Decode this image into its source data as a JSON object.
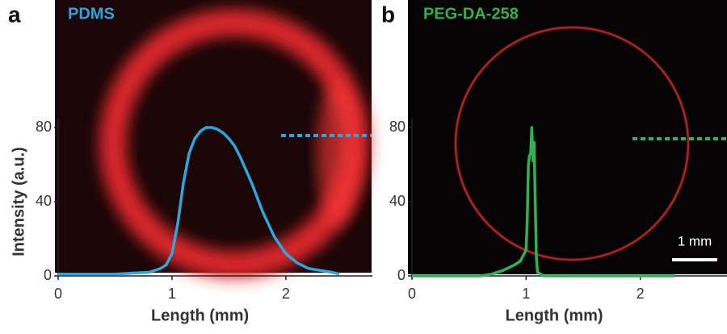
{
  "chart_data": [
    {
      "type": "line",
      "panel_label": "a",
      "x_label": "Length (mm)",
      "y_label": "Intensity (a.u.)",
      "x": [
        0,
        0.5,
        0.8,
        0.9,
        0.95,
        1.0,
        1.05,
        1.1,
        1.15,
        1.2,
        1.25,
        1.3,
        1.35,
        1.4,
        1.45,
        1.5,
        1.55,
        1.6,
        1.7,
        1.8,
        1.9,
        2.0,
        2.1,
        2.2,
        2.3,
        2.4,
        2.47
      ],
      "series": [
        {
          "name": "PDMS",
          "color": "#2ba6de",
          "values": [
            1,
            1,
            2,
            4,
            6,
            12,
            28,
            50,
            66,
            74,
            78,
            80,
            80,
            79,
            77,
            74,
            70,
            64,
            50,
            34,
            21,
            12,
            7,
            4,
            3,
            2,
            1
          ]
        }
      ],
      "xlim": [
        0,
        2.76
      ],
      "ylim": [
        0,
        85
      ],
      "xticks": [
        0,
        1,
        2
      ],
      "yticks": [
        0,
        40,
        80
      ]
    },
    {
      "type": "line",
      "panel_label": "b",
      "x_label": "Length (mm)",
      "scale_bar_label": "1 mm",
      "x": [
        0,
        0.6,
        0.7,
        0.8,
        0.9,
        0.95,
        1.0,
        1.01,
        1.02,
        1.03,
        1.04,
        1.05,
        1.06,
        1.07,
        1.08,
        1.09,
        1.1,
        1.15,
        1.2,
        2.3
      ],
      "series": [
        {
          "name": "PEG-DA-258",
          "color": "#2fb34c",
          "values": [
            0,
            0,
            1,
            3,
            6,
            8,
            14,
            30,
            60,
            65,
            66,
            80,
            62,
            72,
            40,
            10,
            2,
            0,
            0,
            0
          ]
        }
      ],
      "xlim": [
        0,
        2.76
      ],
      "ylim": [
        0,
        85
      ],
      "xticks": [
        0,
        1,
        2
      ],
      "yticks": [
        0,
        40,
        80
      ]
    }
  ]
}
